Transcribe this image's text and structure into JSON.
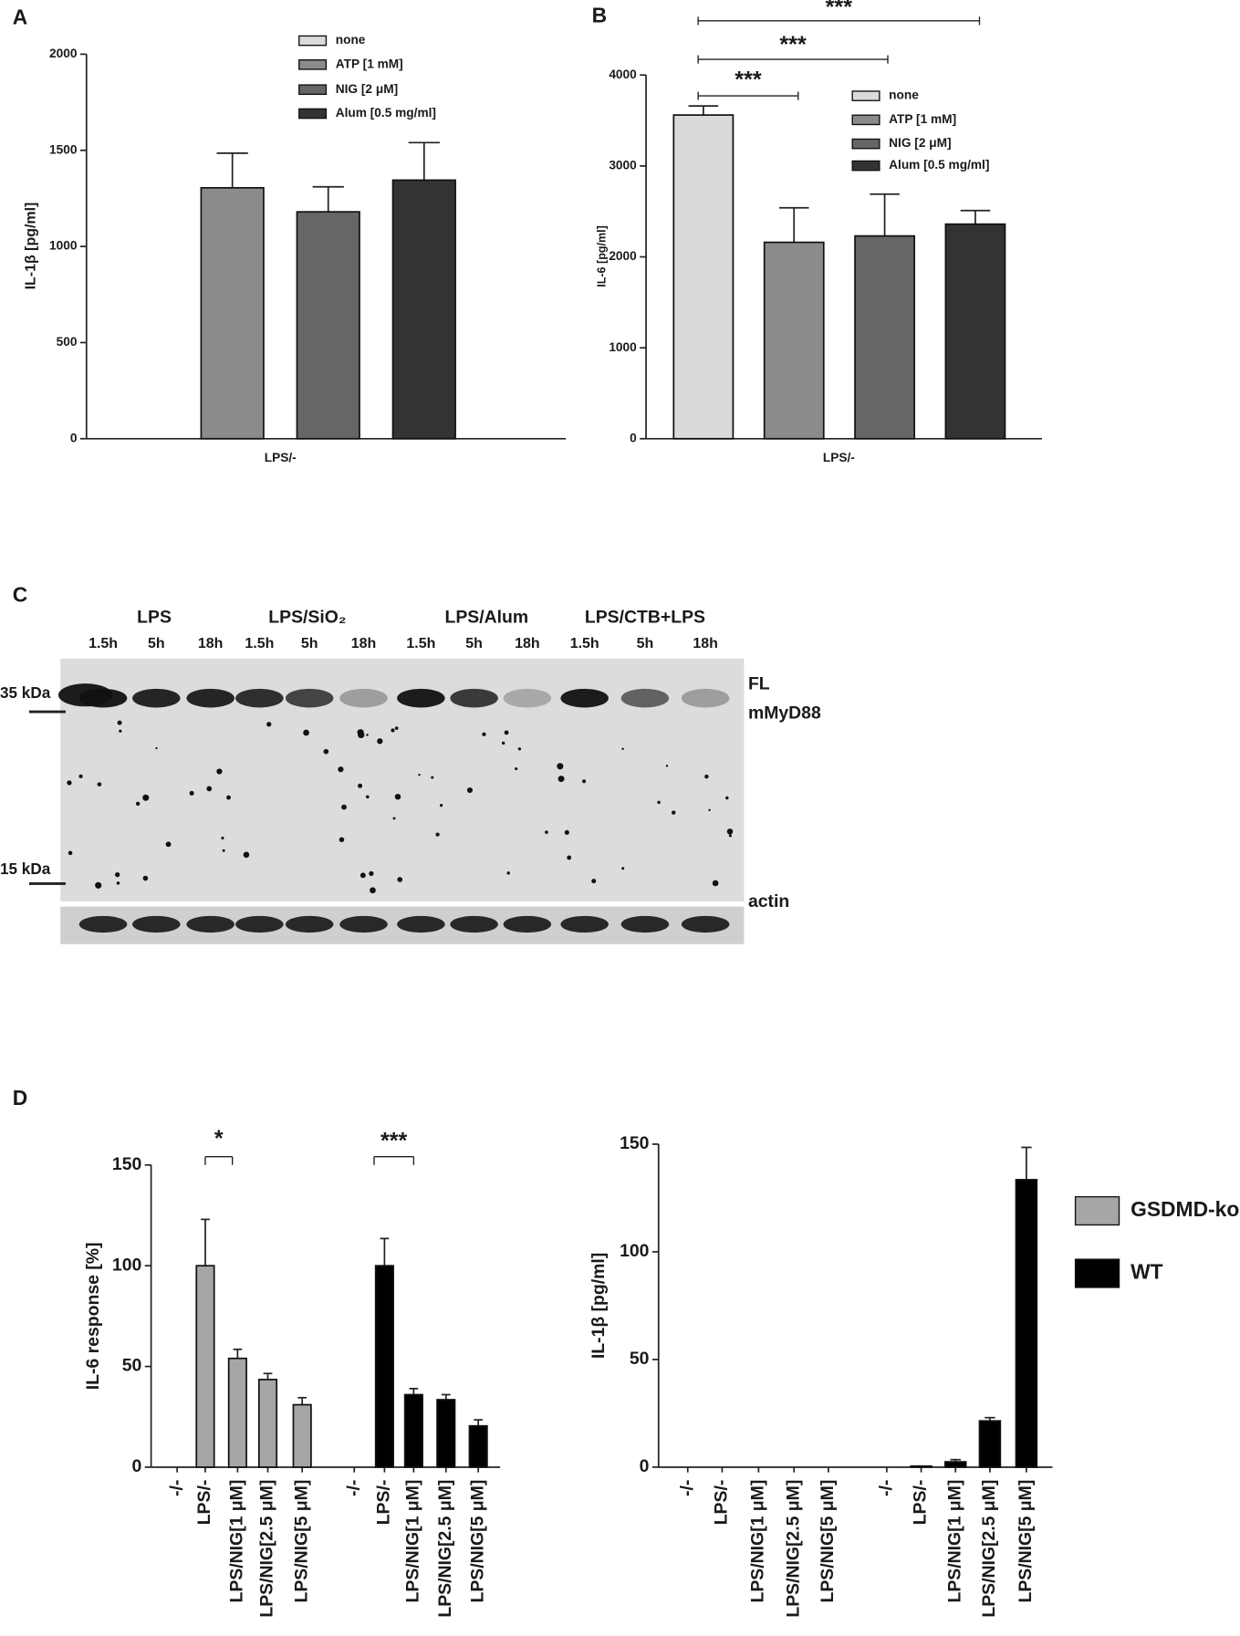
{
  "chart_data": [
    {
      "type": "bar",
      "panel_label": "A",
      "y_label": "IL-1β [pg/ml]",
      "categories": [
        "LPS/-"
      ],
      "series": [
        {
          "name": "none",
          "color": "#d9dbd9",
          "values": [
            0
          ],
          "errors": [
            null
          ]
        },
        {
          "name": "ATP [1 mM]",
          "color": "#8a8c8a",
          "values": [
            1305
          ],
          "errors": [
            180
          ]
        },
        {
          "name": "NIG [2 μM]",
          "color": "#666666",
          "values": [
            1180
          ],
          "errors": [
            130
          ]
        },
        {
          "name": "Alum [0.5 mg/ml]",
          "color": "#333333",
          "values": [
            1345
          ],
          "errors": [
            195
          ]
        }
      ],
      "ylim": [
        0,
        2000
      ],
      "yticks": [
        0,
        500,
        1000,
        1500,
        2000
      ]
    },
    {
      "type": "bar",
      "panel_label": "B",
      "y_label": "IL-6 [pg/ml]",
      "categories": [
        "LPS/-"
      ],
      "series": [
        {
          "name": "none",
          "color": "#d9dbd9",
          "values": [
            3560
          ],
          "errors": [
            100
          ]
        },
        {
          "name": "ATP [1 mM]",
          "color": "#8a8c8a",
          "values": [
            2160
          ],
          "errors": [
            380
          ]
        },
        {
          "name": "NIG [2 μM]",
          "color": "#666666",
          "values": [
            2230
          ],
          "errors": [
            460
          ]
        },
        {
          "name": "Alum [0.5 mg/ml]",
          "color": "#333333",
          "values": [
            2360
          ],
          "errors": [
            150
          ]
        }
      ],
      "annotations": [
        "***",
        "***",
        "***"
      ],
      "ylim": [
        0,
        4000
      ],
      "yticks": [
        0,
        1000,
        2000,
        3000,
        4000
      ]
    },
    {
      "type": "bar",
      "panel_label": "D",
      "y_label": "IL-6 response [%]",
      "categories": [
        "-/-",
        "LPS/-",
        "LPS/NIG[1 μM]",
        "LPS/NIG[2.5 μM]",
        "LPS/NIG[5 μM]",
        "-/-",
        "LPS/-",
        "LPS/NIG[1 μM]",
        "LPS/NIG[2.5 μM]",
        "LPS/NIG[5 μM]"
      ],
      "series": [
        {
          "color": "#a6a6a6",
          "values": [
            null,
            100,
            54,
            43.5,
            31,
            null,
            null,
            null,
            null,
            null
          ],
          "errors": [
            null,
            23,
            4.5,
            3,
            3.5,
            null,
            null,
            null,
            null,
            null
          ]
        },
        {
          "color": "#000000",
          "values": [
            null,
            null,
            null,
            null,
            null,
            null,
            100,
            36,
            33.5,
            20.5
          ],
          "errors": [
            null,
            null,
            null,
            null,
            null,
            null,
            13.5,
            3,
            2.5,
            3
          ]
        }
      ],
      "annotations": [
        "*",
        "***"
      ],
      "ylim": [
        0,
        150
      ],
      "yticks": [
        0,
        50,
        100,
        150
      ]
    },
    {
      "type": "bar",
      "y_label": "IL-1β [pg/ml]",
      "categories": [
        "-/-",
        "LPS/-",
        "LPS/NIG[1 μM]",
        "LPS/NIG[2.5 μM]",
        "LPS/NIG[5 μM]",
        "-/-",
        "LPS/-",
        "LPS/NIG[1 μM]",
        "LPS/NIG[2.5 μM]",
        "LPS/NIG[5 μM]"
      ],
      "series": [
        {
          "name": "GSDMD-ko",
          "color": "#a6a6a6",
          "values": [
            null,
            null,
            null,
            null,
            null,
            null,
            null,
            null,
            null,
            null
          ],
          "errors": [
            null,
            null,
            null,
            null,
            null,
            null,
            null,
            null,
            null,
            null
          ]
        },
        {
          "name": "WT",
          "color": "#000000",
          "values": [
            null,
            null,
            null,
            null,
            null,
            null,
            0.5,
            2.5,
            21.5,
            133.5
          ],
          "errors": [
            null,
            null,
            null,
            null,
            null,
            null,
            null,
            1,
            1.5,
            15
          ]
        }
      ],
      "ylim": [
        0,
        150
      ],
      "yticks": [
        0,
        50,
        100,
        150
      ]
    }
  ],
  "blot": {
    "panel_label": "C",
    "groups": [
      "LPS",
      "LPS/SiO₂",
      "LPS/Alum",
      "LPS/CTB+LPS"
    ],
    "times": [
      "1.5h",
      "5h",
      "18h",
      "1.5h",
      "5h",
      "18h",
      "1.5h",
      "5h",
      "18h",
      "1.5h",
      "5h",
      "18h"
    ],
    "markers": [
      "35 kDa",
      "15 kDa"
    ],
    "bands": [
      "FL",
      "mMyD88",
      "actin"
    ]
  }
}
